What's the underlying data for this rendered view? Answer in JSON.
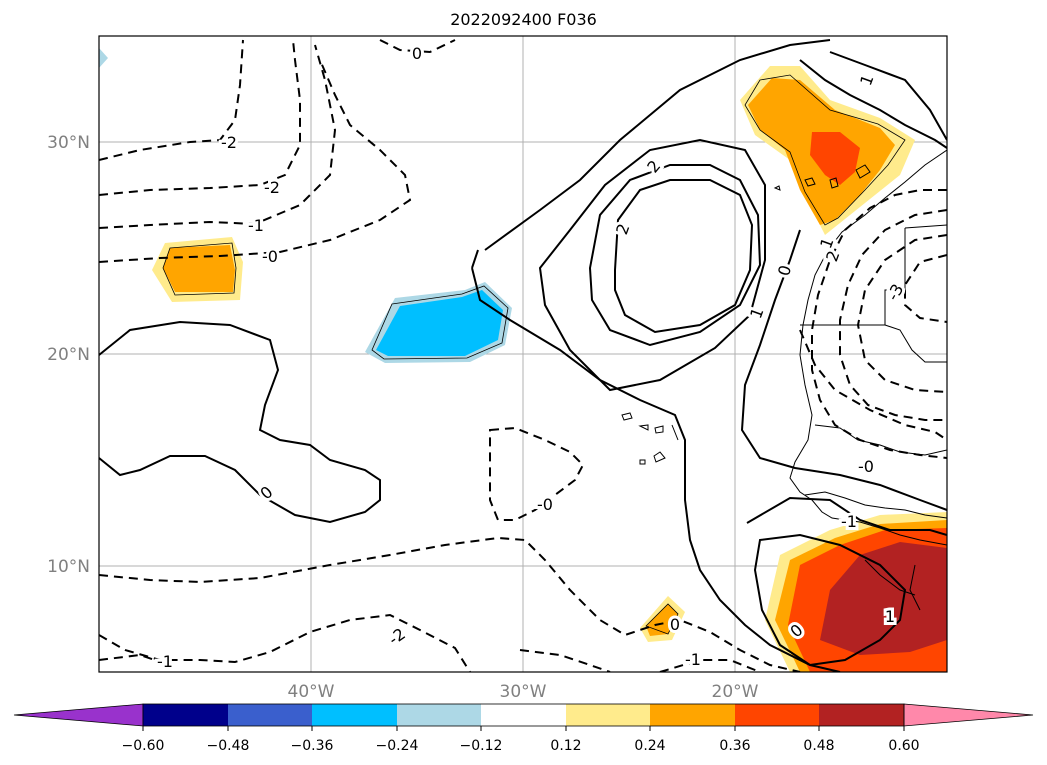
{
  "title": "2022092400 F036",
  "map": {
    "lat_labels": [
      "30°N",
      "20°N",
      "10°N"
    ],
    "lon_labels": [
      "40°W",
      "30°W",
      "20°W"
    ],
    "gridlines": true,
    "fill_colors": {
      "light_yellow": "#ffeb8c",
      "orange": "#ffa500",
      "red_orange": "#ff4500",
      "dark_red": "#b22222",
      "deep_sky_blue": "#00bfff",
      "light_blue": "#add8e6"
    },
    "contour_labels": [
      "0",
      "2",
      "1",
      "-2",
      "-2",
      "-1",
      "-0",
      "1",
      "2",
      "2",
      "1",
      "0",
      "-3",
      "-0",
      "-0",
      "0",
      "-1",
      "-1",
      "-2",
      "0",
      "-1",
      "0",
      "1"
    ]
  },
  "colorbar": {
    "ticks": [
      "−0.60",
      "−0.48",
      "−0.36",
      "−0.24",
      "−0.12",
      "0.12",
      "0.24",
      "0.36",
      "0.48",
      "0.60"
    ],
    "colors": [
      "#9932cc",
      "#00008b",
      "#3a5fcd",
      "#00bfff",
      "#add8e6",
      "#ffffff",
      "#ffeb8c",
      "#ffa500",
      "#ff4500",
      "#b22222",
      "#ff88aa"
    ]
  }
}
